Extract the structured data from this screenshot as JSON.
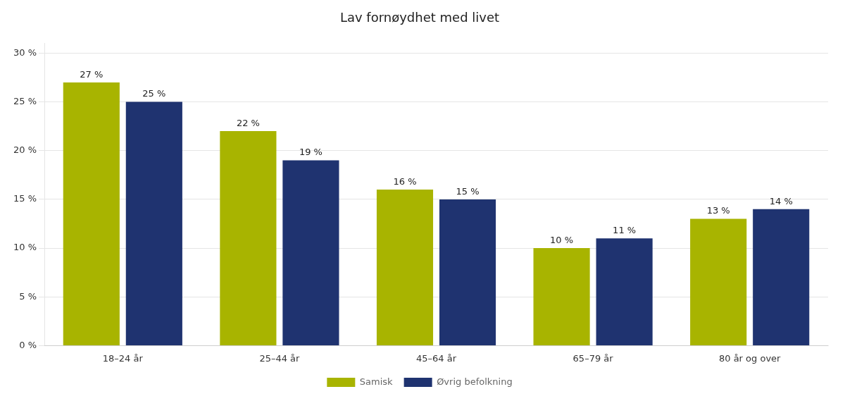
{
  "chart_data": {
    "type": "bar",
    "title": "Lav fornøydhet med livet",
    "categories": [
      "18–24 år",
      "25–44 år",
      "45–64 år",
      "65–79 år",
      "80 år og over"
    ],
    "series": [
      {
        "name": "Samisk",
        "color": "#a8b400",
        "values": [
          27,
          22,
          16,
          10,
          13
        ],
        "value_labels": [
          "27 %",
          "22 %",
          "16 %",
          "10 %",
          "13 %"
        ]
      },
      {
        "name": "Øvrig befolkning",
        "color": "#1f3370",
        "values": [
          25,
          19,
          15,
          11,
          14
        ],
        "value_labels": [
          "25 %",
          "19 %",
          "15 %",
          "11 %",
          "14 %"
        ]
      }
    ],
    "ylim": [
      0,
      31
    ],
    "yticks": [
      {
        "value": 0,
        "label": "0 %"
      },
      {
        "value": 5,
        "label": "5 %"
      },
      {
        "value": 10,
        "label": "10 %"
      },
      {
        "value": 15,
        "label": "15 %"
      },
      {
        "value": 20,
        "label": "20 %"
      },
      {
        "value": 25,
        "label": "25 %"
      },
      {
        "value": 30,
        "label": "30 %"
      }
    ],
    "grid": true,
    "legend": "bottom",
    "data_labels": true
  }
}
